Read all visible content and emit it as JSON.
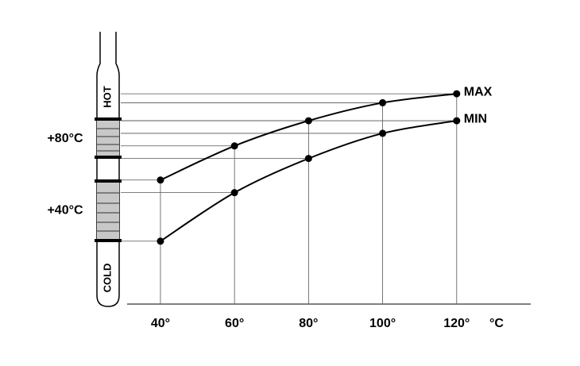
{
  "chart_data": {
    "type": "line",
    "x": [
      40,
      60,
      80,
      100,
      120
    ],
    "series": [
      {
        "name": "MAX",
        "color": "#000000",
        "values": [
          57,
          76,
          90,
          100,
          105
        ]
      },
      {
        "name": "MIN",
        "color": "#000000",
        "values": [
          23,
          50,
          69,
          83,
          90
        ]
      }
    ],
    "xlim": [
      31,
      140
    ],
    "xticks": [
      {
        "value": 40,
        "label": "40°"
      },
      {
        "value": 60,
        "label": "60°"
      },
      {
        "value": 80,
        "label": "80°"
      },
      {
        "value": 100,
        "label": "100°"
      },
      {
        "value": 120,
        "label": "120°"
      }
    ],
    "x_label": "°C",
    "ylim": [
      -12,
      113
    ],
    "yticks": [
      {
        "value": 80,
        "label": "+80°C"
      },
      {
        "value": 40,
        "label": "+40°C"
      }
    ],
    "annotations": [
      "HOT",
      "COLD"
    ]
  }
}
